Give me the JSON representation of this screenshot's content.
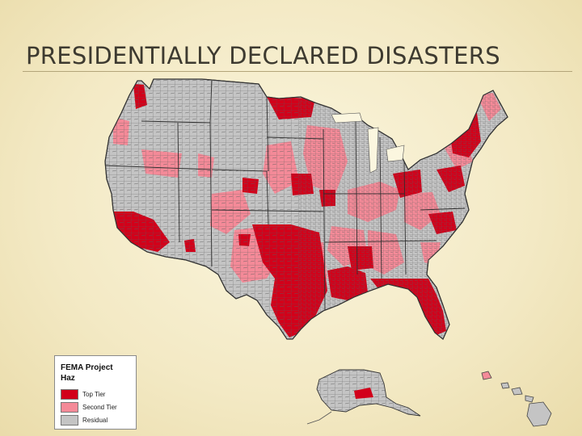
{
  "slide": {
    "title": "PRESIDENTIALLY DECLARED DISASTERS"
  },
  "legend": {
    "title_line1": "FEMA Project",
    "title_line2": "Haz",
    "items": [
      {
        "label": "Top Tier",
        "color": "#d2001a"
      },
      {
        "label": "Second Tier",
        "color": "#f48a98"
      },
      {
        "label": "Residual",
        "color": "#c4c4c4"
      }
    ]
  },
  "colors": {
    "top_tier": "#d2001a",
    "second_tier": "#f48a98",
    "residual": "#c4c4c4",
    "county_borders": "#5a5a5a"
  }
}
